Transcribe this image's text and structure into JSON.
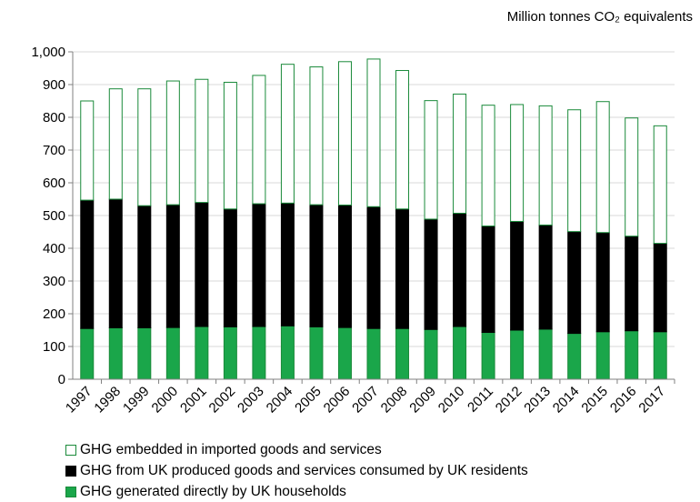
{
  "chart_data": {
    "type": "bar",
    "stacked": true,
    "unit_label": "Million tonnes CO₂ equivalents",
    "categories": [
      "1997",
      "1998",
      "1999",
      "2000",
      "2001",
      "2002",
      "2003",
      "2004",
      "2005",
      "2006",
      "2007",
      "2008",
      "2009",
      "2010",
      "2011",
      "2012",
      "2013",
      "2014",
      "2015",
      "2016",
      "2017"
    ],
    "series": [
      {
        "name": "GHG generated directly by UK households",
        "color": "#1aa64a",
        "values": [
          155,
          157,
          157,
          158,
          161,
          160,
          161,
          163,
          160,
          158,
          155,
          155,
          152,
          161,
          143,
          150,
          153,
          140,
          145,
          148,
          145
        ]
      },
      {
        "name": "GHG from UK produced goods and services consumed by UK residents",
        "color": "#000000",
        "values": [
          392,
          393,
          373,
          375,
          379,
          360,
          375,
          375,
          373,
          374,
          372,
          365,
          337,
          346,
          325,
          332,
          318,
          311,
          303,
          289,
          270
        ]
      },
      {
        "name": "GHG embedded in imported goods and services",
        "color": "#ffffff",
        "values": [
          303,
          337,
          357,
          378,
          376,
          387,
          392,
          424,
          421,
          438,
          451,
          423,
          362,
          364,
          369,
          357,
          364,
          372,
          400,
          361,
          359
        ]
      }
    ],
    "ylim": [
      0,
      1000
    ],
    "yticks": [
      "0",
      "100",
      "200",
      "300",
      "400",
      "500",
      "600",
      "700",
      "800",
      "900",
      "1,000"
    ],
    "grid": true,
    "legend_position": "bottom"
  }
}
